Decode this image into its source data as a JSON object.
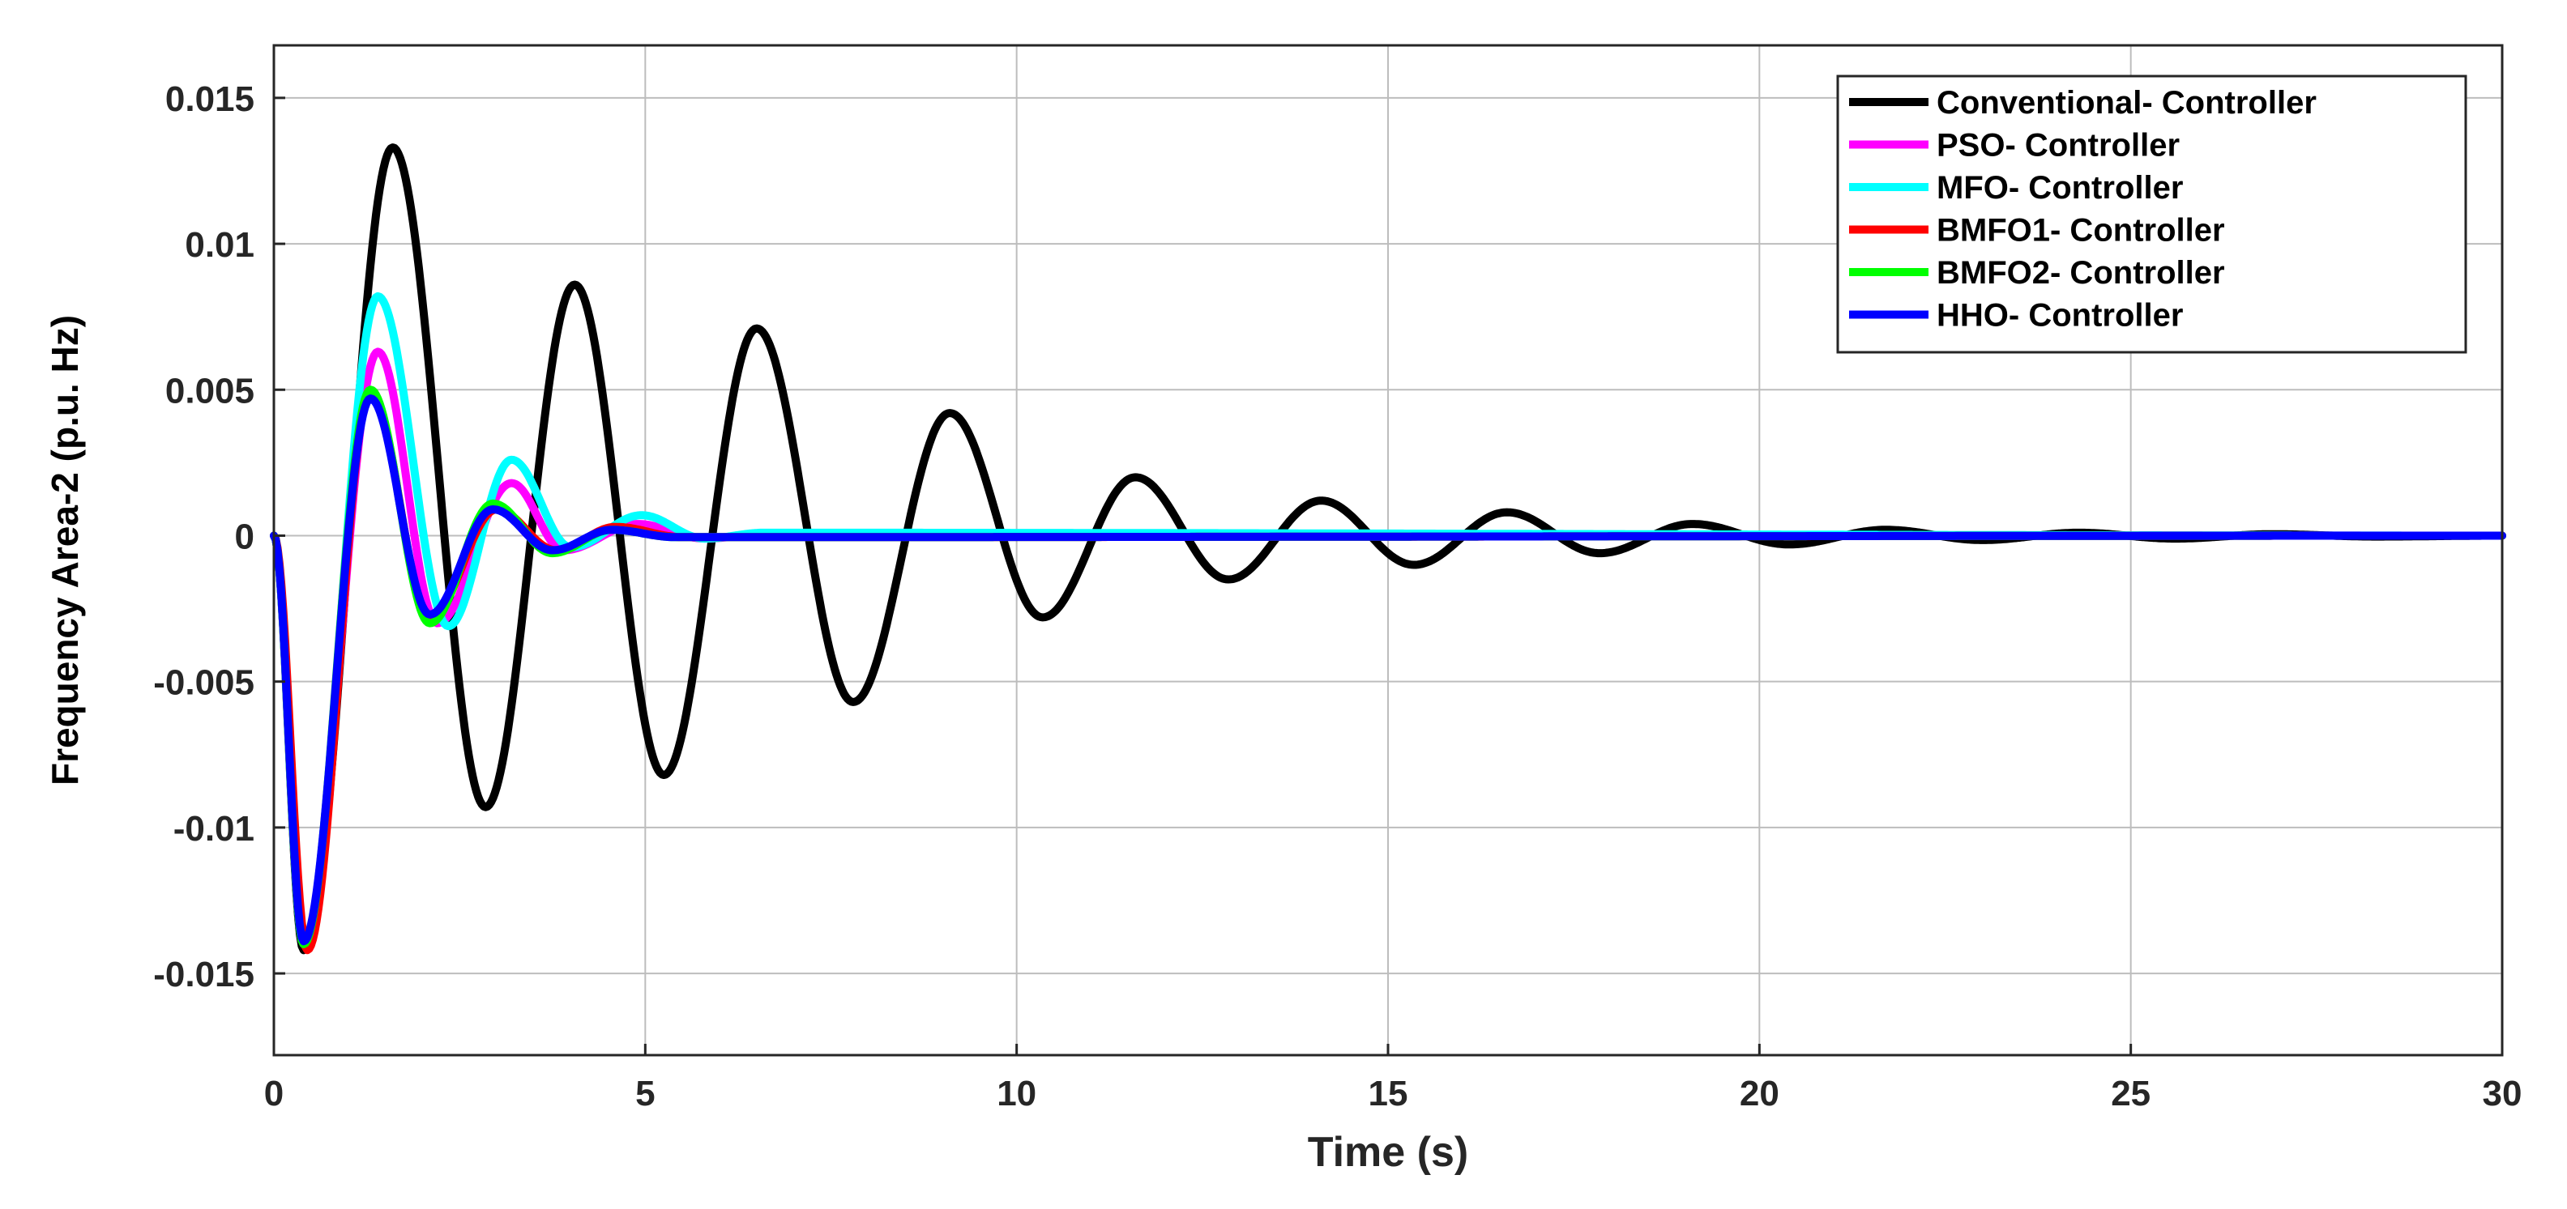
{
  "chart_data": {
    "type": "line",
    "xlabel": "Time (s)",
    "ylabel": "Frequency Area-2 (p.u. Hz)",
    "xlim": [
      0,
      30
    ],
    "ylim": [
      -0.0178,
      0.0168
    ],
    "xticks": [
      0,
      5,
      10,
      15,
      20,
      25,
      30
    ],
    "xtick_labels": [
      "0",
      "5",
      "10",
      "15",
      "20",
      "25",
      "30"
    ],
    "yticks": [
      0.015,
      0.01,
      0.005,
      0,
      -0.005,
      -0.01,
      -0.015
    ],
    "ytick_labels": [
      "0.015",
      "0.01",
      "0.005",
      "0",
      "-0.005",
      "-0.01",
      "-0.015"
    ],
    "grid": true,
    "legend_position": "top-right",
    "series": [
      {
        "name": "Conventional- Controller",
        "color": "#000000",
        "x": [
          0,
          0.4,
          1.6,
          2.85,
          4.05,
          5.25,
          6.5,
          7.8,
          9.1,
          10.35,
          11.6,
          12.85,
          14.1,
          15.35,
          16.6,
          17.85,
          19.1,
          20.4,
          21.7,
          23.0,
          24.3,
          25.6,
          26.9,
          28.3,
          30
        ],
        "y": [
          0,
          -0.0142,
          0.0133,
          -0.0093,
          0.0086,
          -0.0082,
          0.0071,
          -0.0057,
          0.0042,
          -0.0028,
          0.002,
          -0.0015,
          0.0012,
          -0.001,
          0.0008,
          -0.0006,
          0.0004,
          -0.0003,
          0.0002,
          -0.00015,
          0.0001,
          -0.0001,
          5e-05,
          -3e-05,
          0
        ]
      },
      {
        "name": "PSO- Controller",
        "color": "#ff00ff",
        "x": [
          0,
          0.4,
          1.4,
          2.2,
          3.2,
          3.9,
          4.9,
          5.8,
          6.6,
          30
        ],
        "y": [
          0,
          -0.014,
          0.0063,
          -0.003,
          0.0018,
          -0.0005,
          0.0004,
          -0.0001,
          5e-05,
          0
        ]
      },
      {
        "name": "MFO- Controller",
        "color": "#00ffff",
        "x": [
          0,
          0.4,
          1.4,
          2.35,
          3.2,
          4.0,
          4.95,
          5.8,
          6.6,
          30
        ],
        "y": [
          0,
          -0.014,
          0.0082,
          -0.0031,
          0.0026,
          -0.0004,
          0.0007,
          -0.0001,
          0.0001,
          0
        ]
      },
      {
        "name": "BMFO1- Controller",
        "color": "#ff0000",
        "x": [
          0,
          0.45,
          1.3,
          2.1,
          3.0,
          3.8,
          4.6,
          5.5,
          30
        ],
        "y": [
          0,
          -0.0142,
          0.0049,
          -0.0028,
          0.0009,
          -0.0005,
          0.0003,
          -5e-05,
          0
        ]
      },
      {
        "name": "BMFO2- Controller",
        "color": "#00ff00",
        "x": [
          0,
          0.4,
          1.3,
          2.1,
          2.95,
          3.75,
          4.55,
          5.4,
          30
        ],
        "y": [
          0,
          -0.014,
          0.005,
          -0.003,
          0.0011,
          -0.0006,
          0.0002,
          -5e-05,
          0
        ]
      },
      {
        "name": "HHO- Controller",
        "color": "#0000ff",
        "x": [
          0,
          0.4,
          1.3,
          2.1,
          2.95,
          3.75,
          4.55,
          5.4,
          30
        ],
        "y": [
          0,
          -0.0139,
          0.0047,
          -0.0027,
          0.0009,
          -0.0005,
          0.0002,
          -5e-05,
          0
        ]
      }
    ]
  }
}
